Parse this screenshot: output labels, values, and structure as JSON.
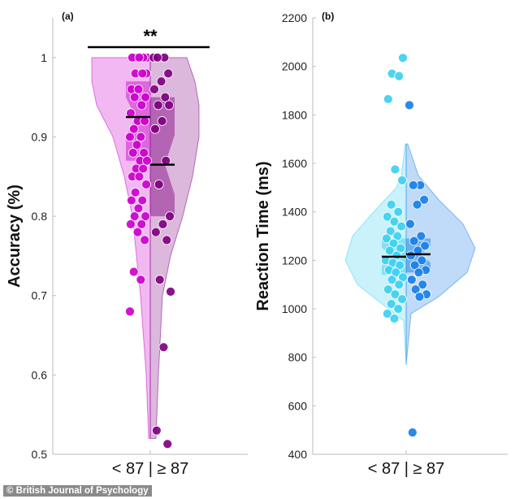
{
  "chart_data": [
    {
      "type": "violin-scatter",
      "panel_label": "(a)",
      "ylabel": "Accuracy (%)",
      "xlabel": "< 87 | ≥ 87",
      "ylim": [
        0.5,
        1.05
      ],
      "yticks": [
        0.5,
        0.6,
        0.7,
        0.8,
        0.9,
        1
      ],
      "ytick_labels": [
        "0.5",
        "0.6",
        "0.7",
        "0.8",
        "0.9",
        "1"
      ],
      "significance": "**",
      "grid": false,
      "series": [
        {
          "group": "<87",
          "side": "left",
          "color": "#cc00cc",
          "median": 0.925,
          "box": [
            0.87,
            0.97
          ],
          "values": [
            1,
            1,
            1,
            1,
            1,
            0.98,
            0.98,
            0.98,
            0.96,
            0.96,
            0.95,
            0.95,
            0.94,
            0.93,
            0.92,
            0.92,
            0.91,
            0.9,
            0.9,
            0.89,
            0.88,
            0.88,
            0.87,
            0.87,
            0.86,
            0.86,
            0.85,
            0.85,
            0.84,
            0.83,
            0.82,
            0.82,
            0.81,
            0.8,
            0.8,
            0.79,
            0.79,
            0.78,
            0.77,
            0.73,
            0.72,
            0.68
          ]
        },
        {
          "group": "≥87",
          "side": "right",
          "color": "#800080",
          "median": 0.865,
          "box": [
            0.8,
            0.95
          ],
          "values": [
            1,
            1,
            1,
            0.98,
            0.97,
            0.96,
            0.95,
            0.94,
            0.94,
            0.92,
            0.91,
            0.87,
            0.84,
            0.8,
            0.79,
            0.78,
            0.77,
            0.72,
            0.705,
            0.635,
            0.53,
            0.513
          ]
        }
      ]
    },
    {
      "type": "violin-scatter",
      "panel_label": "(b)",
      "ylabel": "Reaction Time (ms)",
      "xlabel": "< 87 | ≥ 87",
      "ylim": [
        400,
        2200
      ],
      "yticks": [
        400,
        600,
        800,
        1000,
        1200,
        1400,
        1600,
        1800,
        2000,
        2200
      ],
      "ytick_labels": [
        "400",
        "600",
        "800",
        "1000",
        "1200",
        "1400",
        "1600",
        "1800",
        "2000",
        "2200"
      ],
      "grid": false,
      "series": [
        {
          "group": "<87",
          "side": "left",
          "color": "#3dd0f0",
          "median": 1215,
          "box": [
            1140,
            1290
          ],
          "values": [
            2035,
            1970,
            1960,
            1865,
            1575,
            1530,
            1430,
            1400,
            1380,
            1360,
            1340,
            1320,
            1300,
            1290,
            1270,
            1250,
            1240,
            1220,
            1200,
            1190,
            1180,
            1160,
            1150,
            1130,
            1120,
            1100,
            1080,
            1060,
            1040,
            1020,
            1000,
            980,
            960
          ]
        },
        {
          "group": "≥87",
          "side": "right",
          "color": "#1a7fe8",
          "median": 1225,
          "box": [
            1150,
            1290
          ],
          "values": [
            1840,
            1510,
            1510,
            1450,
            1430,
            1350,
            1300,
            1280,
            1260,
            1240,
            1220,
            1200,
            1180,
            1160,
            1150,
            1120,
            1100,
            1080,
            1060,
            1050,
            490
          ]
        }
      ]
    }
  ],
  "credit": "© British Journal of Psychology"
}
